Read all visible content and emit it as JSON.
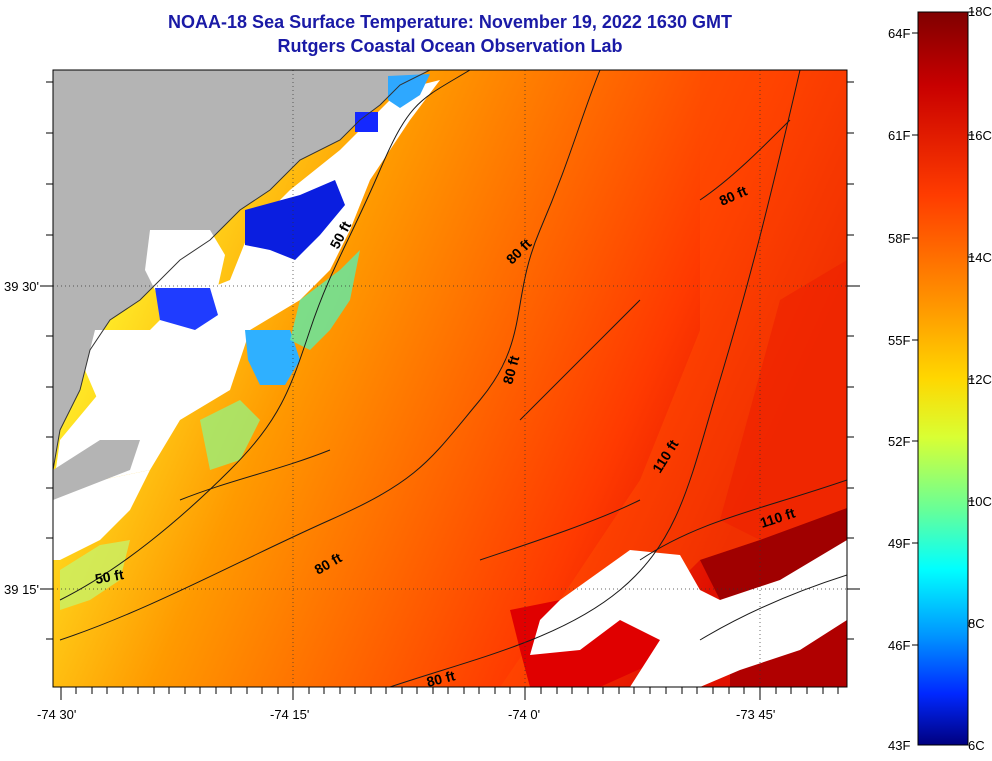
{
  "title": "NOAA-18 Sea Surface Temperature:  November 19, 2022 1630 GMT",
  "subtitle": "Rutgers Coastal Ocean Observation Lab",
  "lon_labels": [
    "-74 30'",
    "-74 15'",
    "-74 0'",
    "-73 45'"
  ],
  "lat_labels": [
    "39 30'",
    "39 15'"
  ],
  "contour_labels": [
    "50 ft",
    "50 ft",
    "80 ft",
    "80 ft",
    "80 ft",
    "80 ft",
    "80 ft",
    "110 ft",
    "110 ft"
  ],
  "colorbar": {
    "celsius": [
      "18C",
      "16C",
      "14C",
      "12C",
      "10C",
      "8C",
      "6C"
    ],
    "fahrenheit": [
      "64F",
      "61F",
      "58F",
      "55F",
      "52F",
      "49F",
      "46F",
      "43F"
    ],
    "colors": [
      "#800000",
      "#cc0000",
      "#ff3300",
      "#ff8000",
      "#ffcc00",
      "#ffff33",
      "#99ff66",
      "#33ffcc",
      "#00ccff",
      "#0066ff",
      "#0000cc",
      "#00007f"
    ]
  },
  "land_color": "#b4b4b4"
}
